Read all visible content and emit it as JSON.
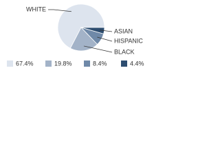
{
  "chart_data": {
    "type": "pie",
    "categories": [
      "WHITE",
      "BLACK",
      "HISPANIC",
      "ASIAN"
    ],
    "values": [
      67.4,
      19.8,
      8.4,
      4.4
    ],
    "value_labels": [
      "67.4%",
      "19.8%",
      "8.4%",
      "4.4%"
    ],
    "colors": [
      "#dde4ee",
      "#a3b3c8",
      "#6f89a8",
      "#2d4d70"
    ]
  }
}
